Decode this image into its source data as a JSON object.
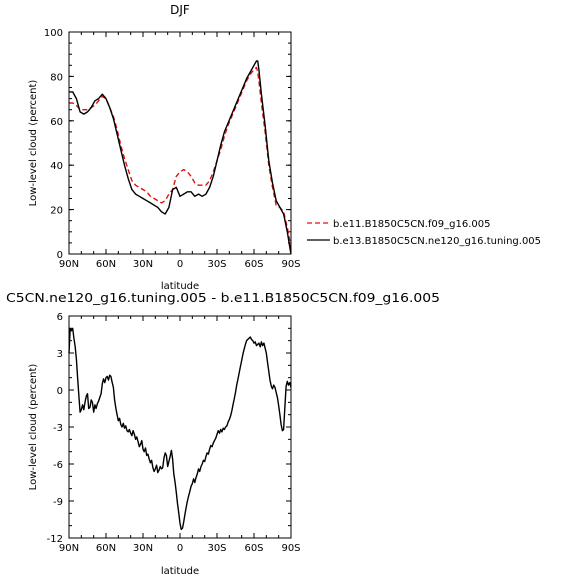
{
  "chart_data": [
    {
      "type": "line",
      "title": "DJF",
      "xlabel": "latitude",
      "ylabel": "Low-level cloud (percent)",
      "xlim": [
        90,
        -90
      ],
      "ylim": [
        0,
        100
      ],
      "x_ticks": [
        90,
        60,
        30,
        0,
        -30,
        -60,
        -90
      ],
      "x_tick_labels": [
        "90N",
        "60N",
        "30N",
        "0",
        "30S",
        "60S",
        "90S"
      ],
      "y_ticks": [
        0,
        20,
        40,
        60,
        80,
        100
      ],
      "y_tick_labels": [
        "0",
        "20",
        "40",
        "60",
        "80",
        "100"
      ],
      "grid": false,
      "legend_position": "right, outside plot",
      "x": [
        90,
        87,
        84,
        81,
        78,
        75,
        72,
        69,
        66,
        63,
        60,
        57,
        54,
        51,
        48,
        45,
        42,
        39,
        36,
        33,
        30,
        27,
        24,
        21,
        18,
        15,
        12,
        9,
        6,
        3,
        0,
        -3,
        -6,
        -9,
        -12,
        -15,
        -18,
        -21,
        -24,
        -27,
        -30,
        -33,
        -36,
        -39,
        -42,
        -45,
        -48,
        -51,
        -54,
        -57,
        -60,
        -62,
        -63,
        -64,
        -66,
        -69,
        -72,
        -75,
        -78,
        -81,
        -84,
        -87,
        -89,
        -90
      ],
      "series": [
        {
          "name": "b.e11.B1850C5CN.f09_g16.005",
          "color": "#e01010",
          "dash": "dashed",
          "values": [
            68,
            68,
            67,
            65,
            65,
            65,
            66,
            67,
            69,
            71,
            70,
            66,
            62,
            56,
            49,
            43,
            38,
            33,
            31,
            30,
            29,
            28,
            26,
            25,
            24,
            23,
            24,
            27,
            29,
            35,
            37,
            38,
            37,
            35,
            32,
            31,
            31,
            31,
            33,
            37,
            42,
            47,
            53,
            58,
            62,
            66,
            70,
            74,
            78,
            81,
            83,
            84,
            82,
            78,
            68,
            55,
            40,
            30,
            22,
            21,
            19,
            12,
            6,
            2
          ]
        },
        {
          "name": "b.e13.B1850C5CN.ne120_g16.tuning.005",
          "color": "#000000",
          "dash": "solid",
          "values": [
            73,
            73,
            70,
            64,
            63,
            64,
            66,
            69,
            70,
            72,
            70,
            66,
            61,
            54,
            47,
            40,
            34,
            29,
            27,
            26,
            25,
            24,
            23,
            22,
            21,
            19,
            18,
            21,
            29,
            30,
            26,
            27,
            28,
            28,
            26,
            27,
            26,
            27,
            30,
            35,
            42,
            49,
            55,
            59,
            63,
            67,
            71,
            75,
            79,
            82,
            85,
            87,
            87,
            83,
            72,
            58,
            42,
            32,
            24,
            21,
            18,
            10,
            3,
            0
          ]
        }
      ]
    },
    {
      "type": "line",
      "title": "C5CN.ne120_g16.tuning.005 - b.e11.B1850C5CN.f09_g16.005",
      "xlabel": "latitude",
      "ylabel": "Low-level cloud (percent)",
      "xlim": [
        90,
        -90
      ],
      "ylim": [
        -12,
        6
      ],
      "x_ticks": [
        90,
        60,
        30,
        0,
        -30,
        -60,
        -90
      ],
      "x_tick_labels": [
        "90N",
        "60N",
        "30N",
        "0",
        "30S",
        "60S",
        "90S"
      ],
      "y_ticks": [
        -12,
        -9,
        -6,
        -3,
        0,
        3,
        6
      ],
      "y_tick_labels": [
        "-12",
        "-9",
        "-6",
        "-3",
        "0",
        "3",
        "6"
      ],
      "grid": false,
      "x": [
        90,
        89,
        88,
        87,
        86,
        85,
        84,
        83,
        82,
        81,
        80,
        79,
        78,
        77,
        76,
        75,
        74,
        73,
        72,
        71,
        70,
        69,
        68,
        67,
        66,
        65,
        64,
        63,
        62,
        61,
        60,
        59,
        58,
        57,
        56,
        55,
        54,
        53,
        52,
        51,
        50,
        49,
        48,
        47,
        46,
        45,
        44,
        43,
        42,
        41,
        40,
        39,
        38,
        37,
        36,
        35,
        34,
        33,
        32,
        31,
        30,
        29,
        28,
        27,
        26,
        25,
        24,
        23,
        22,
        21,
        20,
        19,
        18,
        17,
        16,
        15,
        14,
        13,
        12,
        11,
        10,
        9,
        8,
        7,
        6,
        5,
        4,
        3,
        2,
        1,
        0,
        -1,
        -2,
        -3,
        -4,
        -5,
        -6,
        -7,
        -8,
        -9,
        -10,
        -11,
        -12,
        -13,
        -14,
        -15,
        -16,
        -17,
        -18,
        -19,
        -20,
        -21,
        -22,
        -23,
        -24,
        -25,
        -26,
        -27,
        -28,
        -29,
        -30,
        -31,
        -32,
        -33,
        -34,
        -35,
        -36,
        -37,
        -38,
        -39,
        -40,
        -41,
        -42,
        -43,
        -44,
        -45,
        -46,
        -47,
        -48,
        -49,
        -50,
        -51,
        -52,
        -53,
        -54,
        -55,
        -56,
        -57,
        -58,
        -59,
        -60,
        -61,
        -62,
        -63,
        -64,
        -65,
        -66,
        -67,
        -68,
        -69,
        -70,
        -71,
        -72,
        -73,
        -74,
        -75,
        -76,
        -77,
        -78,
        -79,
        -80,
        -81,
        -82,
        -83,
        -84,
        -85,
        -86,
        -87,
        -88,
        -89,
        -90
      ],
      "values": [
        3,
        5,
        4.8,
        5,
        4.2,
        3.5,
        2.5,
        1,
        -0.5,
        -1.8,
        -1.6,
        -1.2,
        -1.6,
        -1,
        -0.5,
        -0.3,
        -1.5,
        -1.4,
        -0.8,
        -1,
        -1.8,
        -1.2,
        -1.5,
        -1.1,
        -0.9,
        -0.6,
        -0.3,
        0.5,
        0.9,
        0.6,
        1,
        1.1,
        0.8,
        1.2,
        1.1,
        0.6,
        0.2,
        -0.8,
        -1.5,
        -2,
        -2.5,
        -2.3,
        -2.8,
        -3,
        -2.7,
        -3.1,
        -2.9,
        -3.3,
        -3.4,
        -3.2,
        -3.5,
        -3.7,
        -3.3,
        -3.6,
        -4,
        -3.8,
        -4.2,
        -4.6,
        -4.4,
        -4.1,
        -4.8,
        -5,
        -4.7,
        -5.3,
        -5.2,
        -5.6,
        -5.9,
        -5.7,
        -6.3,
        -6.6,
        -6.4,
        -6.1,
        -6.7,
        -6.5,
        -6.2,
        -6.4,
        -6.3,
        -5.5,
        -5.1,
        -5.3,
        -6.2,
        -5.8,
        -5.4,
        -4.9,
        -5.6,
        -6.8,
        -7.5,
        -8.3,
        -9.2,
        -10,
        -10.8,
        -11.3,
        -11.2,
        -10.7,
        -10.1,
        -9.5,
        -9,
        -8.6,
        -8.2,
        -7.8,
        -7.6,
        -7.2,
        -7.5,
        -7.1,
        -6.8,
        -6.4,
        -6.6,
        -6.2,
        -6,
        -5.7,
        -5.8,
        -5.4,
        -5.1,
        -5.2,
        -4.8,
        -4.5,
        -4.6,
        -4.3,
        -4.1,
        -3.9,
        -3.6,
        -3.3,
        -3.5,
        -3.2,
        -3.4,
        -3.1,
        -3.2,
        -3,
        -2.9,
        -2.6,
        -2.4,
        -2.1,
        -1.7,
        -1.2,
        -0.7,
        -0.2,
        0.4,
        0.9,
        1.4,
        1.9,
        2.4,
        2.9,
        3.3,
        3.7,
        4,
        4.1,
        4.2,
        4.3,
        4.1,
        4,
        3.8,
        3.9,
        3.6,
        3.7,
        3.8,
        3.5,
        3.9,
        3.6,
        3.8,
        3.4,
        3,
        2.2,
        1.5,
        0.8,
        0.3,
        0.1,
        0.4,
        0.2,
        -0.2,
        -0.6,
        -1.3,
        -2,
        -2.8,
        -3.3,
        -3.2,
        -1.5,
        0.3,
        0.7,
        0.4,
        0.6,
        0.2
      ]
    }
  ]
}
